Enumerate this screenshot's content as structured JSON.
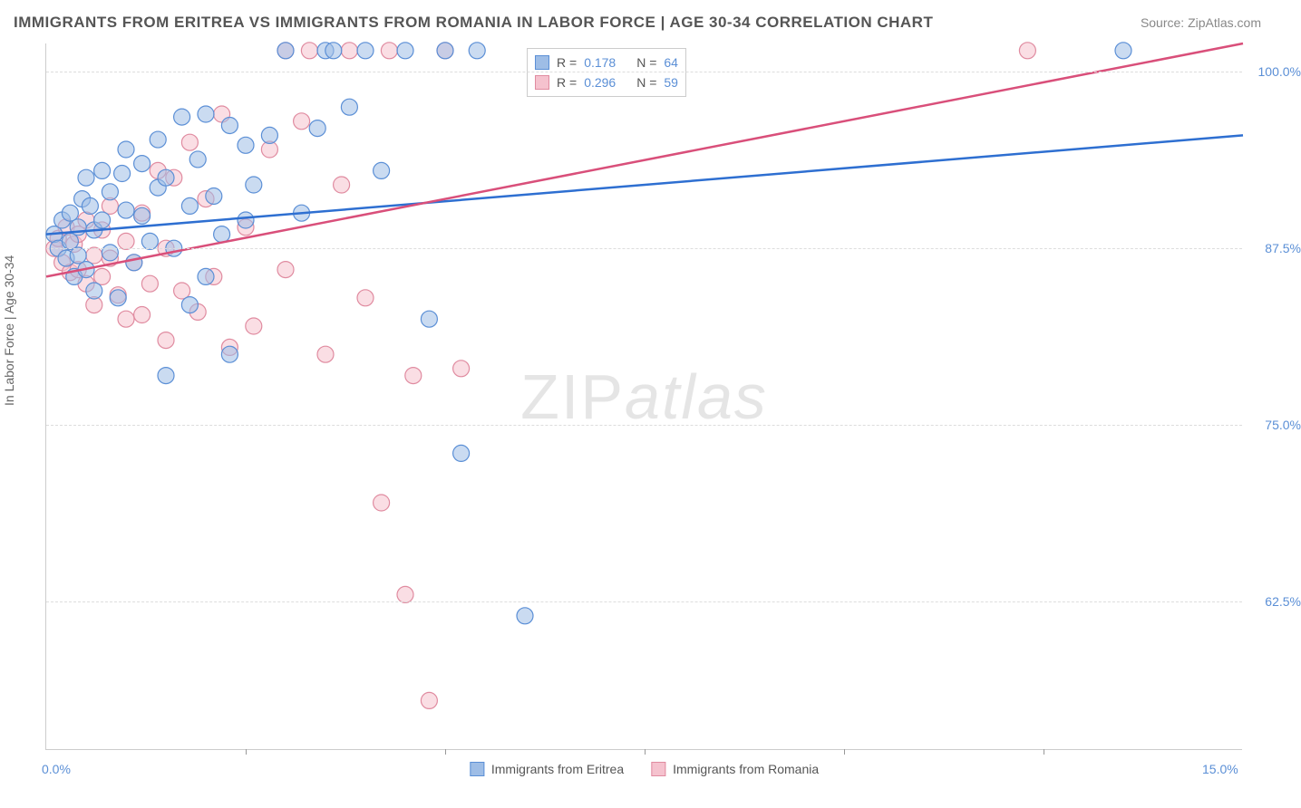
{
  "title": "IMMIGRANTS FROM ERITREA VS IMMIGRANTS FROM ROMANIA IN LABOR FORCE | AGE 30-34 CORRELATION CHART",
  "source": "Source: ZipAtlas.com",
  "ylabel": "In Labor Force | Age 30-34",
  "watermark_a": "ZIP",
  "watermark_b": "atlas",
  "chart": {
    "type": "scatter",
    "xlim": [
      0,
      15
    ],
    "ylim": [
      52,
      102
    ],
    "xtick_labels": [
      "0.0%",
      "15.0%"
    ],
    "xtick_positions": [
      0,
      15
    ],
    "xtick_minor": [
      2.5,
      5,
      7.5,
      10,
      12.5
    ],
    "ytick_labels": [
      "62.5%",
      "75.0%",
      "87.5%",
      "100.0%"
    ],
    "ytick_positions": [
      62.5,
      75,
      87.5,
      100
    ],
    "grid_color": "#dddddd",
    "axis_color": "#cccccc",
    "background_color": "#ffffff",
    "marker_radius": 9,
    "marker_opacity": 0.55,
    "line_width": 2.5
  },
  "series": {
    "blue": {
      "label": "Immigrants from Eritrea",
      "fill": "#9ebde6",
      "stroke": "#5b8fd6",
      "line_color": "#2e6fd1",
      "R": "0.178",
      "N": "64",
      "trend": {
        "x1": 0,
        "y1": 88.5,
        "x2": 15,
        "y2": 95.5
      },
      "points": [
        [
          0.1,
          88.5
        ],
        [
          0.15,
          87.5
        ],
        [
          0.2,
          89.5
        ],
        [
          0.25,
          86.8
        ],
        [
          0.3,
          90
        ],
        [
          0.3,
          88
        ],
        [
          0.35,
          85.5
        ],
        [
          0.4,
          89
        ],
        [
          0.4,
          87
        ],
        [
          0.45,
          91
        ],
        [
          0.5,
          92.5
        ],
        [
          0.5,
          86
        ],
        [
          0.55,
          90.5
        ],
        [
          0.6,
          88.8
        ],
        [
          0.6,
          84.5
        ],
        [
          0.7,
          93
        ],
        [
          0.7,
          89.5
        ],
        [
          0.8,
          91.5
        ],
        [
          0.8,
          87.2
        ],
        [
          0.9,
          84
        ],
        [
          0.95,
          92.8
        ],
        [
          1.0,
          90.2
        ],
        [
          1.0,
          94.5
        ],
        [
          1.1,
          86.5
        ],
        [
          1.2,
          93.5
        ],
        [
          1.2,
          89.8
        ],
        [
          1.3,
          88
        ],
        [
          1.4,
          91.8
        ],
        [
          1.4,
          95.2
        ],
        [
          1.5,
          78.5
        ],
        [
          1.5,
          92.5
        ],
        [
          1.6,
          87.5
        ],
        [
          1.7,
          96.8
        ],
        [
          1.8,
          83.5
        ],
        [
          1.8,
          90.5
        ],
        [
          1.9,
          93.8
        ],
        [
          2.0,
          85.5
        ],
        [
          2.0,
          97
        ],
        [
          2.1,
          91.2
        ],
        [
          2.2,
          88.5
        ],
        [
          2.3,
          96.2
        ],
        [
          2.3,
          80
        ],
        [
          2.5,
          94.8
        ],
        [
          2.5,
          89.5
        ],
        [
          2.6,
          92
        ],
        [
          2.8,
          95.5
        ],
        [
          3.0,
          101.5
        ],
        [
          3.2,
          90
        ],
        [
          3.4,
          96
        ],
        [
          3.5,
          101.5
        ],
        [
          3.6,
          101.5
        ],
        [
          3.8,
          97.5
        ],
        [
          4.0,
          101.5
        ],
        [
          4.2,
          93
        ],
        [
          4.5,
          101.5
        ],
        [
          4.8,
          82.5
        ],
        [
          5.0,
          101.5
        ],
        [
          5.2,
          73
        ],
        [
          5.4,
          101.5
        ],
        [
          6.0,
          61.5
        ],
        [
          13.5,
          101.5
        ]
      ]
    },
    "pink": {
      "label": "Immigrants from Romania",
      "fill": "#f5c2ce",
      "stroke": "#e08ba0",
      "line_color": "#d94f7a",
      "R": "0.296",
      "N": "59",
      "trend": {
        "x1": 0,
        "y1": 85.5,
        "x2": 15,
        "y2": 102
      },
      "points": [
        [
          0.1,
          87.5
        ],
        [
          0.15,
          88.2
        ],
        [
          0.2,
          86.5
        ],
        [
          0.25,
          89
        ],
        [
          0.3,
          85.8
        ],
        [
          0.35,
          87.8
        ],
        [
          0.4,
          86
        ],
        [
          0.4,
          88.5
        ],
        [
          0.5,
          89.5
        ],
        [
          0.5,
          85
        ],
        [
          0.6,
          87
        ],
        [
          0.6,
          83.5
        ],
        [
          0.7,
          88.8
        ],
        [
          0.7,
          85.5
        ],
        [
          0.8,
          90.5
        ],
        [
          0.8,
          86.8
        ],
        [
          0.9,
          84.2
        ],
        [
          1.0,
          88
        ],
        [
          1.0,
          82.5
        ],
        [
          1.1,
          86.5
        ],
        [
          1.2,
          82.8
        ],
        [
          1.2,
          90
        ],
        [
          1.3,
          85
        ],
        [
          1.4,
          93
        ],
        [
          1.5,
          81
        ],
        [
          1.5,
          87.5
        ],
        [
          1.6,
          92.5
        ],
        [
          1.7,
          84.5
        ],
        [
          1.8,
          95
        ],
        [
          1.9,
          83
        ],
        [
          2.0,
          91
        ],
        [
          2.1,
          85.5
        ],
        [
          2.2,
          97
        ],
        [
          2.3,
          80.5
        ],
        [
          2.5,
          89
        ],
        [
          2.6,
          82
        ],
        [
          2.8,
          94.5
        ],
        [
          3.0,
          86
        ],
        [
          3.0,
          101.5
        ],
        [
          3.2,
          96.5
        ],
        [
          3.3,
          101.5
        ],
        [
          3.5,
          80
        ],
        [
          3.7,
          92
        ],
        [
          3.8,
          101.5
        ],
        [
          4.0,
          84
        ],
        [
          4.2,
          69.5
        ],
        [
          4.3,
          101.5
        ],
        [
          4.5,
          63
        ],
        [
          4.6,
          78.5
        ],
        [
          4.8,
          55.5
        ],
        [
          5.0,
          101.5
        ],
        [
          5.2,
          79
        ],
        [
          12.3,
          101.5
        ]
      ]
    }
  },
  "legend_top": {
    "R_label": "R  =",
    "N_label": "N  =",
    "text_color_label": "#555555",
    "text_color_value": "#5b8fd6"
  },
  "legend_bottom_text_color": "#555555"
}
